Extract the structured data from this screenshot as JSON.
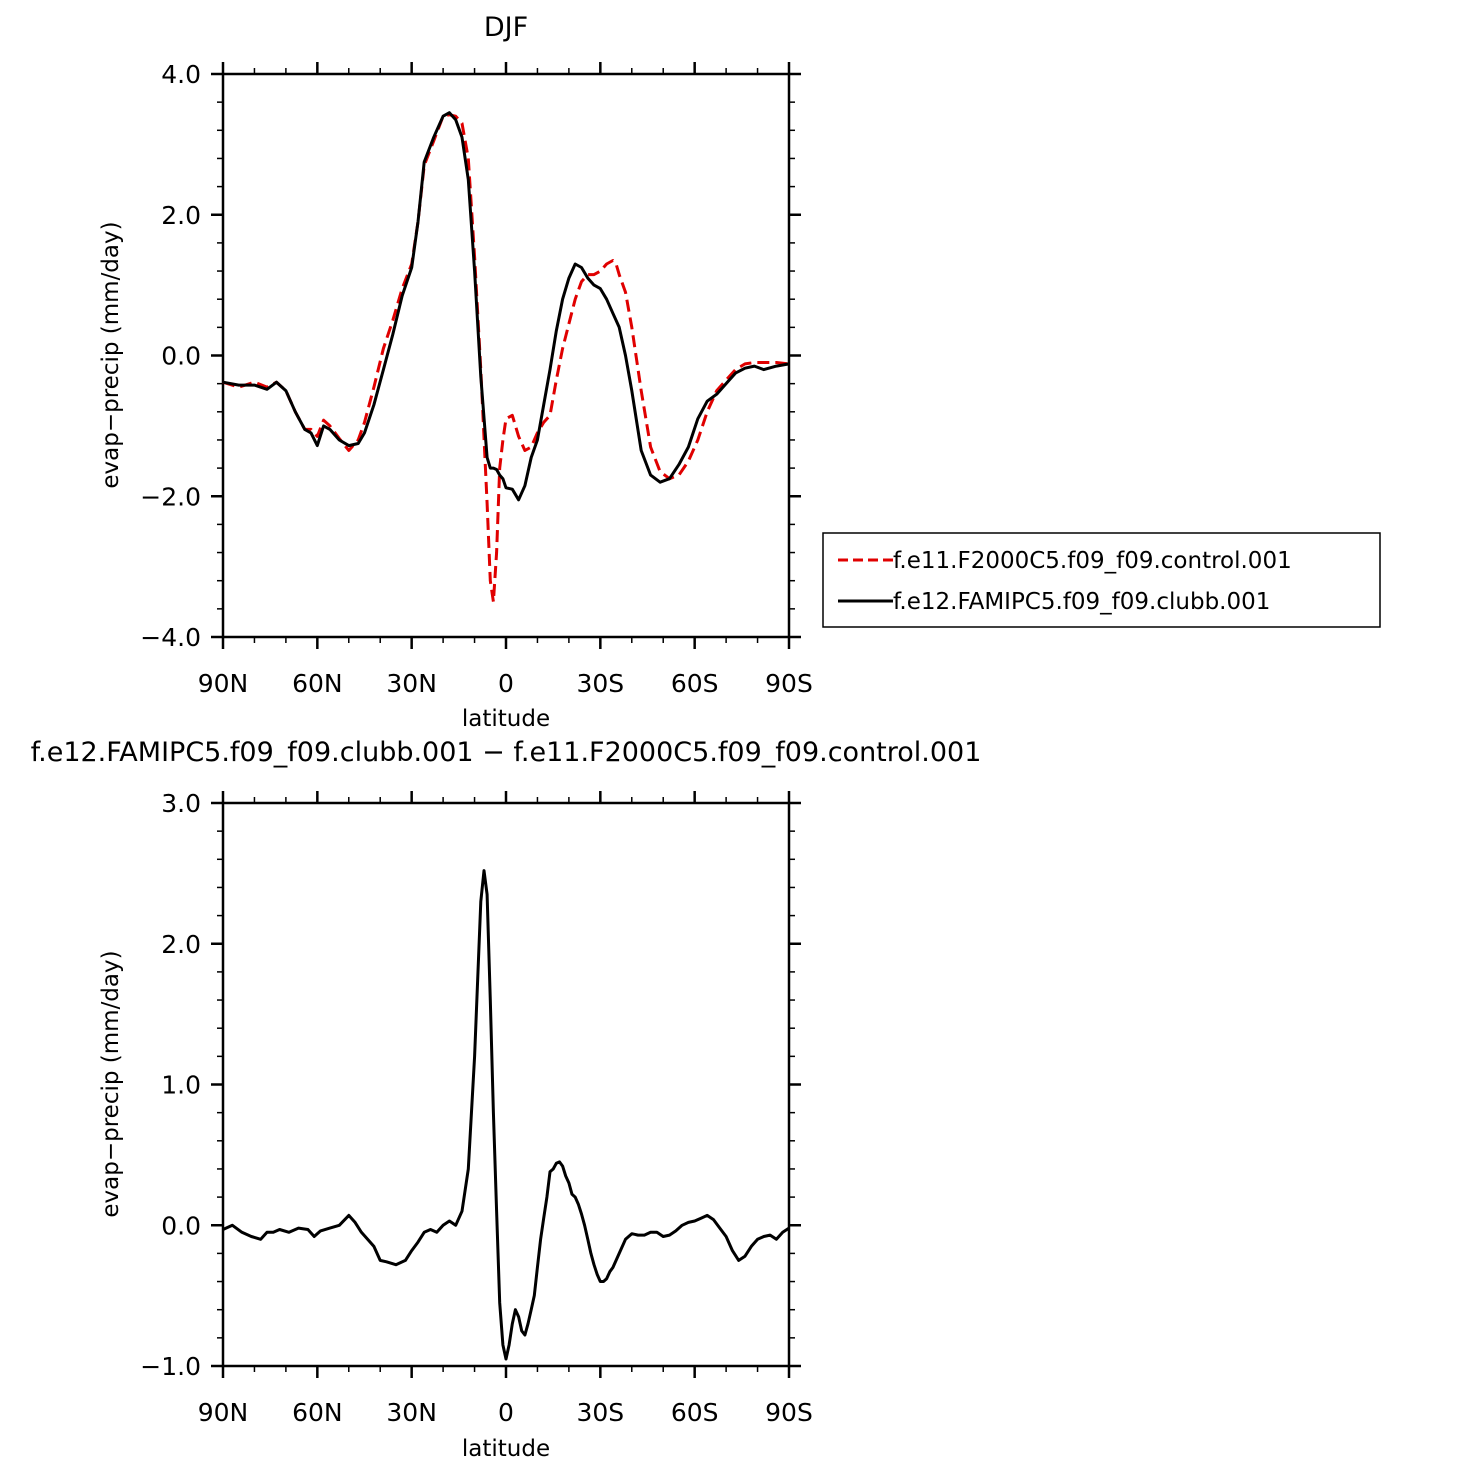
{
  "chart_data": [
    {
      "type": "line",
      "title": "DJF",
      "xlabel": "latitude",
      "ylabel": "evap−precip (mm/day)",
      "xlim": [
        90,
        -90
      ],
      "ylim": [
        -4,
        4
      ],
      "x_ticks": [
        90,
        60,
        30,
        0,
        -30,
        -60,
        -90
      ],
      "x_tick_labels": [
        "90N",
        "60N",
        "30N",
        "0",
        "30S",
        "60S",
        "90S"
      ],
      "y_ticks": [
        -4,
        -2,
        0,
        2,
        4
      ],
      "y_tick_labels": [
        "−4.0",
        "−2.0",
        "0.0",
        "2.0",
        "4.0"
      ],
      "legend_position": "right",
      "series": [
        {
          "name": "f.e11.F2000C5.f09_f09.control.001",
          "color": "#e00000",
          "dash": "dashed",
          "x": [
            90,
            85,
            80,
            76,
            73,
            70,
            67,
            64,
            62,
            60,
            58,
            56,
            53,
            50,
            47,
            45,
            42,
            39,
            36,
            33,
            30,
            28,
            26,
            23,
            20,
            18,
            16,
            14,
            12,
            10,
            8,
            6,
            5,
            4,
            3,
            2,
            1,
            0,
            -2,
            -4,
            -6,
            -8,
            -10,
            -12,
            -14,
            -16,
            -18,
            -20,
            -22,
            -24,
            -26,
            -28,
            -30,
            -32,
            -34,
            -35,
            -36,
            -38,
            -40,
            -43,
            -46,
            -49,
            -52,
            -55,
            -58,
            -61,
            -64,
            -67,
            -70,
            -73,
            -76,
            -79,
            -82,
            -86,
            -90
          ],
          "y": [
            -0.38,
            -0.45,
            -0.38,
            -0.45,
            -0.38,
            -0.5,
            -0.8,
            -1.05,
            -1.05,
            -1.15,
            -0.92,
            -1.0,
            -1.18,
            -1.35,
            -1.2,
            -0.95,
            -0.45,
            0.1,
            0.5,
            0.95,
            1.3,
            1.9,
            2.7,
            3.05,
            3.4,
            3.42,
            3.4,
            3.3,
            2.8,
            1.4,
            -0.2,
            -2.1,
            -3.2,
            -3.5,
            -2.8,
            -1.6,
            -1.2,
            -0.9,
            -0.85,
            -1.15,
            -1.35,
            -1.3,
            -1.1,
            -0.95,
            -0.85,
            -0.35,
            0.1,
            0.45,
            0.8,
            1.05,
            1.15,
            1.15,
            1.2,
            1.3,
            1.35,
            1.3,
            1.15,
            0.9,
            0.4,
            -0.5,
            -1.3,
            -1.65,
            -1.75,
            -1.7,
            -1.5,
            -1.2,
            -0.8,
            -0.5,
            -0.35,
            -0.2,
            -0.12,
            -0.1,
            -0.1,
            -0.1,
            -0.12
          ]
        },
        {
          "name": "f.e12.FAMIPC5.f09_f09.clubb.001",
          "color": "#000000",
          "dash": "solid",
          "x": [
            90,
            85,
            80,
            76,
            73,
            70,
            67,
            64,
            62,
            60,
            58,
            56,
            53,
            50,
            47,
            45,
            42,
            39,
            36,
            33,
            30,
            28,
            26,
            23,
            20,
            18,
            16,
            14,
            12,
            10,
            8,
            6,
            5,
            4,
            3,
            2,
            1,
            0,
            -2,
            -4,
            -6,
            -8,
            -10,
            -12,
            -14,
            -16,
            -18,
            -20,
            -22,
            -24,
            -26,
            -28,
            -30,
            -32,
            -34,
            -36,
            -38,
            -40,
            -43,
            -46,
            -49,
            -52,
            -55,
            -58,
            -61,
            -64,
            -67,
            -70,
            -73,
            -76,
            -79,
            -82,
            -86,
            -90
          ],
          "y": [
            -0.38,
            -0.42,
            -0.42,
            -0.48,
            -0.38,
            -0.5,
            -0.8,
            -1.05,
            -1.1,
            -1.28,
            -1.0,
            -1.05,
            -1.2,
            -1.28,
            -1.25,
            -1.1,
            -0.7,
            -0.2,
            0.3,
            0.85,
            1.25,
            1.9,
            2.75,
            3.1,
            3.4,
            3.45,
            3.35,
            3.1,
            2.5,
            1.2,
            -0.3,
            -1.45,
            -1.6,
            -1.6,
            -1.62,
            -1.7,
            -1.75,
            -1.88,
            -1.9,
            -2.05,
            -1.85,
            -1.45,
            -1.2,
            -0.7,
            -0.2,
            0.35,
            0.8,
            1.1,
            1.3,
            1.25,
            1.1,
            1.0,
            0.95,
            0.8,
            0.6,
            0.4,
            0.0,
            -0.5,
            -1.35,
            -1.7,
            -1.8,
            -1.75,
            -1.55,
            -1.3,
            -0.9,
            -0.65,
            -0.55,
            -0.4,
            -0.25,
            -0.18,
            -0.15,
            -0.2,
            -0.15,
            -0.12
          ]
        }
      ]
    },
    {
      "type": "line",
      "title": "f.e12.FAMIPC5.f09_f09.clubb.001 − f.e11.F2000C5.f09_f09.control.001",
      "xlabel": "latitude",
      "ylabel": "evap−precip (mm/day)",
      "xlim": [
        90,
        -90
      ],
      "ylim": [
        -1,
        3
      ],
      "x_ticks": [
        90,
        60,
        30,
        0,
        -30,
        -60,
        -90
      ],
      "x_tick_labels": [
        "90N",
        "60N",
        "30N",
        "0",
        "30S",
        "60S",
        "90S"
      ],
      "y_ticks": [
        -1,
        0,
        1,
        2,
        3
      ],
      "y_tick_labels": [
        "−1.0",
        "0.0",
        "1.0",
        "2.0",
        "3.0"
      ],
      "series": [
        {
          "color": "#000000",
          "dash": "solid",
          "x": [
            90,
            87,
            84,
            81,
            78,
            76,
            74,
            72,
            69,
            66,
            63,
            61,
            59,
            56,
            53,
            50,
            48,
            46,
            44,
            42,
            40,
            38,
            35,
            32,
            30,
            28,
            26,
            24,
            22,
            20,
            18,
            16,
            14,
            12,
            10,
            8,
            7,
            6,
            5,
            4,
            3,
            2,
            1,
            0,
            -1,
            -2,
            -3,
            -4,
            -5,
            -6,
            -7,
            -8,
            -9,
            -10,
            -11,
            -12,
            -13,
            -14,
            -15,
            -16,
            -17,
            -18,
            -19,
            -20,
            -21,
            -22,
            -23,
            -24,
            -25,
            -26,
            -27,
            -28,
            -29,
            -30,
            -31,
            -32,
            -33,
            -34,
            -36,
            -38,
            -40,
            -42,
            -44,
            -46,
            -48,
            -50,
            -52,
            -54,
            -56,
            -58,
            -60,
            -62,
            -64,
            -66,
            -68,
            -70,
            -72,
            -74,
            -76,
            -78,
            -80,
            -82,
            -84,
            -86,
            -88,
            -90
          ],
          "y": [
            -0.03,
            0.0,
            -0.05,
            -0.08,
            -0.1,
            -0.05,
            -0.05,
            -0.03,
            -0.05,
            -0.02,
            -0.03,
            -0.08,
            -0.04,
            -0.02,
            0.0,
            0.07,
            0.02,
            -0.05,
            -0.1,
            -0.15,
            -0.25,
            -0.26,
            -0.28,
            -0.25,
            -0.18,
            -0.12,
            -0.05,
            -0.03,
            -0.05,
            0.0,
            0.03,
            0.0,
            0.1,
            0.4,
            1.2,
            2.3,
            2.52,
            2.35,
            1.6,
            0.8,
            0.1,
            -0.55,
            -0.85,
            -0.95,
            -0.85,
            -0.7,
            -0.6,
            -0.65,
            -0.75,
            -0.78,
            -0.7,
            -0.6,
            -0.5,
            -0.3,
            -0.1,
            0.05,
            0.2,
            0.38,
            0.4,
            0.44,
            0.45,
            0.42,
            0.35,
            0.3,
            0.22,
            0.2,
            0.15,
            0.08,
            0.0,
            -0.1,
            -0.2,
            -0.28,
            -0.35,
            -0.4,
            -0.4,
            -0.38,
            -0.33,
            -0.3,
            -0.2,
            -0.1,
            -0.06,
            -0.07,
            -0.07,
            -0.05,
            -0.05,
            -0.08,
            -0.07,
            -0.04,
            0.0,
            0.02,
            0.03,
            0.05,
            0.07,
            0.04,
            -0.02,
            -0.08,
            -0.18,
            -0.25,
            -0.22,
            -0.15,
            -0.1,
            -0.08,
            -0.07,
            -0.1,
            -0.05,
            -0.02
          ]
        }
      ]
    }
  ]
}
